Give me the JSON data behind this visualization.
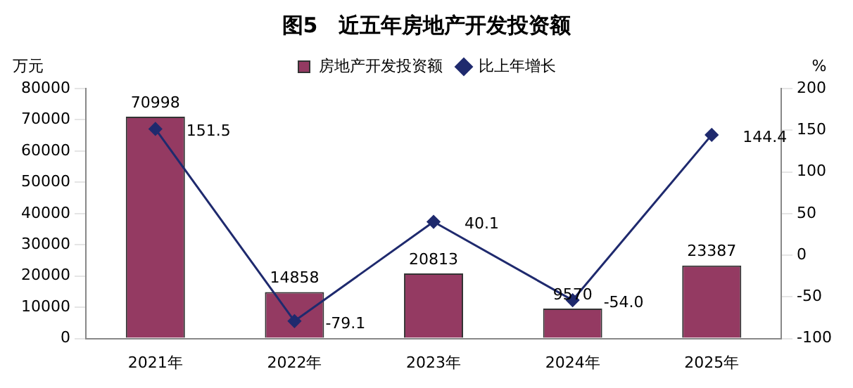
{
  "chart_data": {
    "type": "bar",
    "title": "图5　近五年房地产开发投资额",
    "ylabel": "万元",
    "y2label": "%",
    "categories": [
      "2021年",
      "2022年",
      "2023年",
      "2024年",
      "2025年"
    ],
    "series": [
      {
        "name": "房地产开发投资额",
        "color": "#943a62",
        "values": [
          70998,
          14858,
          20813,
          9570,
          23387
        ],
        "value_labels": [
          "70998",
          "14858",
          "20813",
          "9570",
          "23387"
        ]
      },
      {
        "name": "比上年增长",
        "type": "line",
        "axis": "y2",
        "color": "#1f2a6e",
        "values": [
          151.5,
          -79.1,
          40.1,
          -54.0,
          144.4
        ],
        "value_labels": [
          "151.5",
          "-79.1",
          "40.1",
          "-54.0",
          "144.4"
        ]
      }
    ],
    "ylim": [
      0,
      80000
    ],
    "yticks": [
      0,
      10000,
      20000,
      30000,
      40000,
      50000,
      60000,
      70000,
      80000
    ],
    "y2lim": [
      -100,
      200
    ],
    "y2ticks": [
      -100,
      -50,
      0,
      50,
      100,
      150,
      200
    ],
    "legend": "top",
    "marker": "diamond",
    "grid": false
  }
}
